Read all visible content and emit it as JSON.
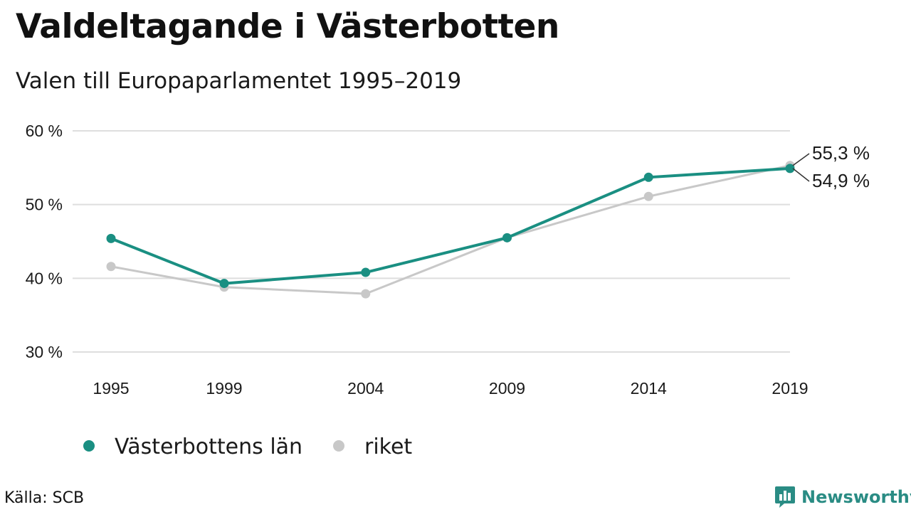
{
  "title": "Valdeltagande i Västerbotten",
  "subtitle": "Valen till Europaparlamentet 1995–2019",
  "source": "Källa: SCB",
  "brand": {
    "name": "Newsworthy",
    "color": "#2a8c84",
    "icon": "bar-chart-logo-icon"
  },
  "chart_data": {
    "type": "line",
    "x": [
      "1995",
      "1999",
      "2004",
      "2009",
      "2014",
      "2019"
    ],
    "yticks": [
      "60 %",
      "50 %",
      "40 %",
      "30 %"
    ],
    "ylim": [
      30,
      60
    ],
    "grid": true,
    "legend_position": "bottom-left",
    "series": [
      {
        "name": "riket",
        "color": "#c8c8c8",
        "values": [
          41.6,
          38.8,
          37.9,
          45.5,
          51.1,
          55.3
        ]
      },
      {
        "name": "Västerbottens län",
        "color": "#1a8f82",
        "values": [
          45.4,
          39.3,
          40.8,
          45.5,
          53.7,
          54.9
        ]
      }
    ],
    "annotations": [
      {
        "series": "riket",
        "x": "2019",
        "text": "55,3 %"
      },
      {
        "series": "Västerbottens län",
        "x": "2019",
        "text": "54,9 %"
      }
    ]
  }
}
